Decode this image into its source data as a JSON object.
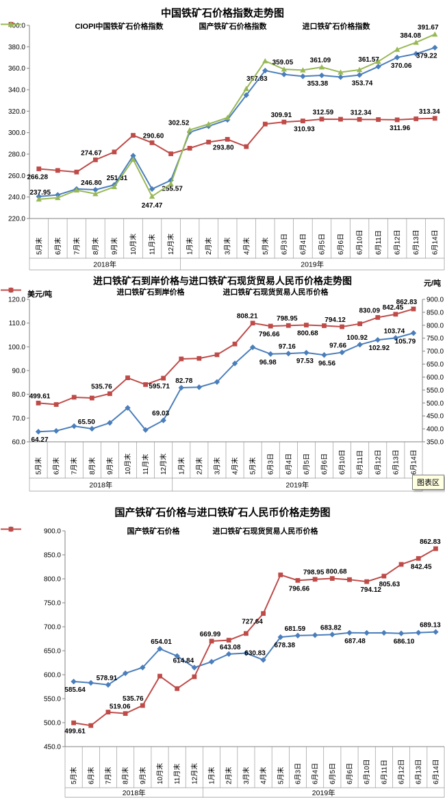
{
  "tooltip": {
    "text": "图表区"
  },
  "colors": {
    "blue": "#4A7EBB",
    "red": "#BE4B48",
    "green": "#98B855"
  },
  "chart_data": [
    {
      "type": "line",
      "title": "中国铁矿石价格指数走势图",
      "categories": [
        "5月末",
        "6月末",
        "7月末",
        "8月末",
        "9月末",
        "10月末",
        "11月末",
        "12月末",
        "1月末",
        "2月末",
        "3月末",
        "4月末",
        "5月末",
        "6月3日",
        "6月4日",
        "6月5日",
        "6月6日",
        "6月10日",
        "6月11日",
        "6月12日",
        "6月13日",
        "6月14日"
      ],
      "year_groups": [
        {
          "label": "2018年",
          "count": 8
        },
        {
          "label": "2019年",
          "count": 14
        }
      ],
      "axes": {
        "left": {
          "min": 220,
          "max": 400,
          "step": 20,
          "unit": ""
        },
        "right": null
      },
      "grid": "off",
      "legend_position": "top",
      "series": [
        {
          "name": "CIOPI中国铁矿石价格指数",
          "color_key": "blue",
          "marker": "diamond",
          "axis": "left",
          "values": [
            240.5,
            242.0,
            247.5,
            246.8,
            251.31,
            278.5,
            247.47,
            255.57,
            300.5,
            306.0,
            312.0,
            335.0,
            357.83,
            354.3,
            352.5,
            353.38,
            351.8,
            353.74,
            361.57,
            370.06,
            373.5,
            379.22
          ],
          "point_labels": [
            {
              "i": 3,
              "t": "246.80",
              "p": "a",
              "dx": -6
            },
            {
              "i": 4,
              "t": "251.31",
              "p": "a",
              "dx": 4
            },
            {
              "i": 6,
              "t": "247.47",
              "p": "b",
              "dy": 12
            },
            {
              "i": 7,
              "t": "255.57",
              "p": "b",
              "dx": 2
            },
            {
              "i": 12,
              "t": "357.83",
              "p": "b",
              "dx": -12
            },
            {
              "i": 15,
              "t": "353.38",
              "p": "b",
              "dx": -6
            },
            {
              "i": 17,
              "t": "353.74",
              "p": "b",
              "dx": 4
            },
            {
              "i": 18,
              "t": "361.57",
              "p": "a",
              "dx": -14
            },
            {
              "i": 19,
              "t": "370.06",
              "p": "b",
              "dx": 6
            },
            {
              "i": 21,
              "t": "379.22",
              "p": "b",
              "dx": -12
            }
          ]
        },
        {
          "name": "国产铁矿石价格指数",
          "color_key": "red",
          "marker": "square",
          "axis": "left",
          "values": [
            266.28,
            264.8,
            263.3,
            274.67,
            282.0,
            297.5,
            290.6,
            280.3,
            285.5,
            291.2,
            293.8,
            287.0,
            308.0,
            309.91,
            310.93,
            312.59,
            312.5,
            312.34,
            312.2,
            311.96,
            312.9,
            313.34
          ],
          "point_labels": [
            {
              "i": 0,
              "t": "266.28",
              "p": "b",
              "dx": -2
            },
            {
              "i": 3,
              "t": "274.67",
              "p": "a",
              "dx": -6
            },
            {
              "i": 6,
              "t": "290.60",
              "p": "a",
              "dx": 2
            },
            {
              "i": 10,
              "t": "293.80",
              "p": "b",
              "dx": -6
            },
            {
              "i": 13,
              "t": "309.91",
              "p": "a",
              "dx": -4
            },
            {
              "i": 14,
              "t": "310.93",
              "p": "b",
              "dx": 2
            },
            {
              "i": 15,
              "t": "312.59",
              "p": "a",
              "dx": 2
            },
            {
              "i": 17,
              "t": "312.34",
              "p": "a",
              "dx": 2
            },
            {
              "i": 19,
              "t": "311.96",
              "p": "b",
              "dx": 4
            },
            {
              "i": 21,
              "t": "313.34",
              "p": "a",
              "dx": -8
            }
          ]
        },
        {
          "name": "进口铁矿石价格指数",
          "color_key": "green",
          "marker": "triangle",
          "axis": "left",
          "values": [
            237.95,
            239.3,
            246.4,
            243.0,
            249.5,
            275.0,
            240.6,
            252.3,
            302.52,
            308.0,
            314.0,
            341.0,
            366.8,
            359.05,
            358.3,
            361.09,
            356.3,
            358.6,
            366.3,
            377.5,
            384.08,
            391.67
          ],
          "point_labels": [
            {
              "i": 0,
              "t": "237.95",
              "p": "a",
              "dx": 2
            },
            {
              "i": 8,
              "t": "302.52",
              "p": "a",
              "dx": -16
            },
            {
              "i": 13,
              "t": "359.05",
              "p": "a",
              "dx": -2
            },
            {
              "i": 15,
              "t": "361.09",
              "p": "a",
              "dx": -2
            },
            {
              "i": 20,
              "t": "384.08",
              "p": "a",
              "dx": -8
            },
            {
              "i": 21,
              "t": "391.67",
              "p": "a",
              "dx": -10
            }
          ]
        }
      ]
    },
    {
      "type": "line",
      "title": "进口铁矿石到岸价格与进口铁矿石现货贸易人民币价格走势图",
      "categories": [
        "5月末",
        "6月末",
        "7月末",
        "8月末",
        "9月末",
        "10月末",
        "11月末",
        "12月末",
        "1月末",
        "2月末",
        "3月末",
        "4月末",
        "5月末",
        "6月3日",
        "6月4日",
        "6月5日",
        "6月6日",
        "6月10日",
        "6月11日",
        "6月12日",
        "6月13日",
        "6月14日"
      ],
      "year_groups": [
        {
          "label": "2018年",
          "count": 8
        },
        {
          "label": "2019年",
          "count": 14
        }
      ],
      "axes": {
        "left": {
          "min": 60,
          "max": 120,
          "step": 10,
          "unit": "美元/吨"
        },
        "right": {
          "min": 350,
          "max": 900,
          "step": 50,
          "unit": "元/吨"
        }
      },
      "grid": "off",
      "legend_position": "top",
      "series": [
        {
          "name": "进口铁矿石到岸价格",
          "color_key": "blue",
          "marker": "diamond",
          "axis": "left",
          "values": [
            64.27,
            64.6,
            66.6,
            65.5,
            68.0,
            74.3,
            65.0,
            69.03,
            82.78,
            83.0,
            85.2,
            93.0,
            99.8,
            96.98,
            97.16,
            97.53,
            96.56,
            97.66,
            100.92,
            102.92,
            103.74,
            105.79
          ],
          "point_labels": [
            {
              "i": 0,
              "t": "64.27",
              "p": "b",
              "dx": 2
            },
            {
              "i": 3,
              "t": "65.50",
              "p": "a",
              "dx": -8
            },
            {
              "i": 7,
              "t": "69.03",
              "p": "a",
              "dx": -4
            },
            {
              "i": 8,
              "t": "82.78",
              "p": "a",
              "dx": 4
            },
            {
              "i": 13,
              "t": "96.98",
              "p": "b",
              "dx": -4
            },
            {
              "i": 14,
              "t": "97.16",
              "p": "a",
              "dx": -2
            },
            {
              "i": 15,
              "t": "97.53",
              "p": "b",
              "dx": -2
            },
            {
              "i": 16,
              "t": "96.56",
              "p": "b",
              "dx": 4
            },
            {
              "i": 17,
              "t": "97.66",
              "p": "a",
              "dx": -6
            },
            {
              "i": 18,
              "t": "100.92",
              "p": "a",
              "dx": -4
            },
            {
              "i": 19,
              "t": "102.92",
              "p": "b",
              "dx": 2
            },
            {
              "i": 20,
              "t": "103.74",
              "p": "a",
              "dx": -2
            },
            {
              "i": 21,
              "t": "105.79",
              "p": "b",
              "dx": -12
            }
          ]
        },
        {
          "name": "进口铁矿石现货贸易人民币价格",
          "color_key": "red",
          "marker": "square",
          "axis": "right",
          "values": [
            499.61,
            494.0,
            522.0,
            519.06,
            535.76,
            597.0,
            571.0,
            595.71,
            669.99,
            672.0,
            686.0,
            727.64,
            808.21,
            796.66,
            798.95,
            800.68,
            798.3,
            794.12,
            805.63,
            830.09,
            842.45,
            862.83
          ],
          "point_labels": [
            {
              "i": 0,
              "t": "499.61",
              "p": "a",
              "dx": 2
            },
            {
              "i": 4,
              "t": "535.76",
              "p": "a",
              "dx": -12
            },
            {
              "i": 7,
              "t": "595.71",
              "p": "b",
              "dx": -6
            },
            {
              "i": 12,
              "t": "808.21",
              "p": "a",
              "dx": -8
            },
            {
              "i": 13,
              "t": "796.66",
              "p": "b",
              "dx": -2
            },
            {
              "i": 14,
              "t": "798.95",
              "p": "a",
              "dx": -2
            },
            {
              "i": 15,
              "t": "800.68",
              "p": "b",
              "dx": 2
            },
            {
              "i": 17,
              "t": "794.12",
              "p": "a",
              "dx": -10
            },
            {
              "i": 19,
              "t": "830.09",
              "p": "a",
              "dx": -12
            },
            {
              "i": 20,
              "t": "842.45",
              "p": "a",
              "dx": -4
            },
            {
              "i": 21,
              "t": "862.83",
              "p": "a",
              "dx": -10
            }
          ]
        }
      ]
    },
    {
      "type": "line",
      "title": "国产铁矿石价格与进口铁矿石人民币价格走势图",
      "categories": [
        "5月末",
        "6月末",
        "7月末",
        "8月末",
        "9月末",
        "10月末",
        "11月末",
        "12月末",
        "1月末",
        "2月末",
        "3月末",
        "4月末",
        "5月末",
        "6月3日",
        "6月4日",
        "6月5日",
        "6月6日",
        "6月10日",
        "6月11日",
        "6月12日",
        "6月13日",
        "6月14日"
      ],
      "year_groups": [
        {
          "label": "2018年",
          "count": 8
        },
        {
          "label": "2019年",
          "count": 14
        }
      ],
      "axes": {
        "left": {
          "min": 450,
          "max": 900,
          "step": 50,
          "unit": ""
        },
        "right": null
      },
      "grid": "off",
      "legend_position": "top",
      "series": [
        {
          "name": "国产铁矿石价格",
          "color_key": "blue",
          "marker": "diamond",
          "axis": "left",
          "values": [
            585.64,
            583.0,
            578.91,
            603.0,
            615.0,
            654.01,
            639.0,
            614.84,
            627.0,
            643.08,
            645.0,
            630.83,
            678.38,
            681.59,
            682.5,
            683.82,
            687.48,
            687.2,
            687.3,
            686.1,
            687.6,
            689.13
          ],
          "point_labels": [
            {
              "i": 0,
              "t": "585.64",
              "p": "b",
              "dx": 2
            },
            {
              "i": 2,
              "t": "578.91",
              "p": "a",
              "dx": -2
            },
            {
              "i": 5,
              "t": "654.01",
              "p": "a",
              "dx": 2
            },
            {
              "i": 7,
              "t": "614.84",
              "p": "a",
              "dx": -16
            },
            {
              "i": 9,
              "t": "643.08",
              "p": "a",
              "dx": 2
            },
            {
              "i": 11,
              "t": "630.83",
              "p": "a",
              "dx": -12
            },
            {
              "i": 12,
              "t": "678.38",
              "p": "b",
              "dx": 6
            },
            {
              "i": 13,
              "t": "681.59",
              "p": "a",
              "dx": -4
            },
            {
              "i": 15,
              "t": "683.82",
              "p": "a",
              "dx": -2
            },
            {
              "i": 16,
              "t": "687.48",
              "p": "b",
              "dx": 8
            },
            {
              "i": 19,
              "t": "686.10",
              "p": "b",
              "dx": 4
            },
            {
              "i": 21,
              "t": "689.13",
              "p": "a",
              "dx": -8
            }
          ]
        },
        {
          "name": "进口铁矿石现货贸易人民币价格",
          "color_key": "red",
          "marker": "square",
          "axis": "left",
          "values": [
            499.61,
            494.0,
            522.0,
            519.06,
            535.76,
            597.0,
            571.0,
            595.71,
            669.99,
            672.0,
            686.0,
            727.64,
            808.21,
            796.66,
            798.95,
            800.68,
            798.3,
            794.12,
            805.63,
            830.09,
            842.45,
            862.83
          ],
          "point_labels": [
            {
              "i": 0,
              "t": "499.61",
              "p": "b",
              "dx": 2
            },
            {
              "i": 3,
              "t": "519.06",
              "p": "a",
              "dx": -8
            },
            {
              "i": 4,
              "t": "535.76",
              "p": "a",
              "dx": -14
            },
            {
              "i": 8,
              "t": "669.99",
              "p": "a",
              "dx": -2
            },
            {
              "i": 11,
              "t": "727.64",
              "p": "b",
              "dx": -16
            },
            {
              "i": 13,
              "t": "796.66",
              "p": "b",
              "dx": 2
            },
            {
              "i": 14,
              "t": "798.95",
              "p": "a",
              "dx": -2
            },
            {
              "i": 15,
              "t": "800.68",
              "p": "a",
              "dx": 6
            },
            {
              "i": 17,
              "t": "794.12",
              "p": "b",
              "dx": 6
            },
            {
              "i": 18,
              "t": "805.63",
              "p": "b",
              "dx": 8
            },
            {
              "i": 20,
              "t": "842.45",
              "p": "b",
              "dx": 4
            },
            {
              "i": 21,
              "t": "862.83",
              "p": "a",
              "dx": -8
            }
          ]
        }
      ]
    }
  ]
}
